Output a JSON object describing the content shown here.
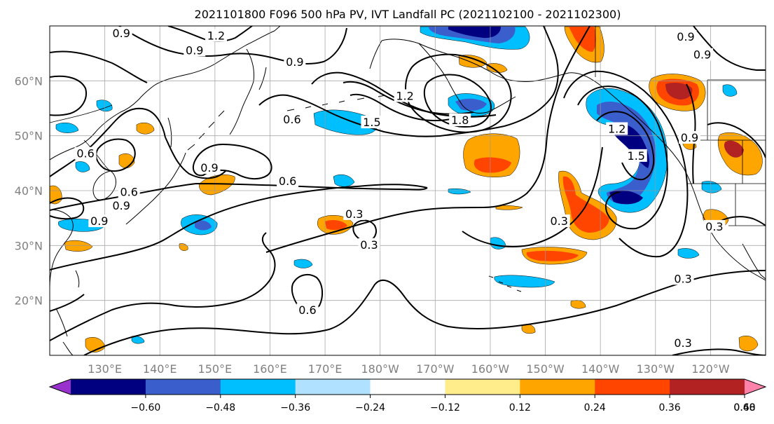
{
  "title": "2021101800 F096 500 hPa PV, IVT Landfall PC (2021102100 - 2021102300)",
  "map": {
    "lon_range": [
      120,
      250
    ],
    "lat_range": [
      10,
      70
    ],
    "lat_labels": [
      {
        "lat": 60,
        "label": "60°N"
      },
      {
        "lat": 50,
        "label": "50°N"
      },
      {
        "lat": 40,
        "label": "40°N"
      },
      {
        "lat": 30,
        "label": "30°N"
      },
      {
        "lat": 20,
        "label": "20°N"
      }
    ],
    "lon_labels": [
      {
        "lon": 130,
        "label": "130°E"
      },
      {
        "lon": 140,
        "label": "140°E"
      },
      {
        "lon": 150,
        "label": "150°E"
      },
      {
        "lon": 160,
        "label": "160°E"
      },
      {
        "lon": 170,
        "label": "170°E"
      },
      {
        "lon": 180,
        "label": "180°W"
      },
      {
        "lon": 190,
        "label": "170°W"
      },
      {
        "lon": 200,
        "label": "160°W"
      },
      {
        "lon": 210,
        "label": "150°W"
      },
      {
        "lon": 220,
        "label": "140°W"
      },
      {
        "lon": 230,
        "label": "130°W"
      },
      {
        "lon": 240,
        "label": "120°W"
      }
    ],
    "grid": true,
    "label_color": "#808080"
  },
  "contour_labels": [
    {
      "text": "1.2",
      "lon": 150.2,
      "lat": 68.3
    },
    {
      "text": "0.9",
      "lon": 146.3,
      "lat": 65.6
    },
    {
      "text": "0.9",
      "lon": 133.0,
      "lat": 68.7
    },
    {
      "text": "0.9",
      "lon": 164.5,
      "lat": 63.5
    },
    {
      "text": "0.6",
      "lon": 164.0,
      "lat": 53.0
    },
    {
      "text": "1.2",
      "lon": 184.5,
      "lat": 57.3
    },
    {
      "text": "1.5",
      "lon": 178.5,
      "lat": 52.5
    },
    {
      "text": "1.8",
      "lon": 194.5,
      "lat": 52.9
    },
    {
      "text": "0.9",
      "lon": 149.0,
      "lat": 44.2
    },
    {
      "text": "0.6",
      "lon": 126.5,
      "lat": 46.8
    },
    {
      "text": "0.6",
      "lon": 134.4,
      "lat": 39.8
    },
    {
      "text": "0.9",
      "lon": 133.0,
      "lat": 37.3
    },
    {
      "text": "0.9",
      "lon": 129.0,
      "lat": 34.5
    },
    {
      "text": "0.6",
      "lon": 163.2,
      "lat": 41.8
    },
    {
      "text": "0.3",
      "lon": 175.3,
      "lat": 35.8
    },
    {
      "text": "0.3",
      "lon": 178.0,
      "lat": 30.2
    },
    {
      "text": "0.6",
      "lon": 166.8,
      "lat": 18.3
    },
    {
      "text": "0.3",
      "lon": 212.5,
      "lat": 34.5
    },
    {
      "text": "1.2",
      "lon": 223.0,
      "lat": 51.3
    },
    {
      "text": "1.5",
      "lon": 226.5,
      "lat": 46.4
    },
    {
      "text": "0.9",
      "lon": 236.2,
      "lat": 49.7
    },
    {
      "text": "0.3",
      "lon": 240.7,
      "lat": 33.5
    },
    {
      "text": "0.3",
      "lon": 235.0,
      "lat": 24.0
    },
    {
      "text": "0.3",
      "lon": 235.0,
      "lat": 12.3
    },
    {
      "text": "0.9",
      "lon": 235.5,
      "lat": 68.1
    },
    {
      "text": "0.9",
      "lon": 238.5,
      "lat": 64.8
    }
  ],
  "colorbar": {
    "tick_labels": [
      "−0.60",
      "−0.48",
      "−0.36",
      "−0.24",
      "−0.12",
      "0.12",
      "0.24",
      "0.36",
      "0.48",
      "0.60"
    ],
    "colors": [
      "#9932cc",
      "#000080",
      "#3a5fcd",
      "#00bfff",
      "#b0e2ff",
      "#ffffff",
      "#ffec8b",
      "#ffa500",
      "#ff4500",
      "#b22222",
      "#ff82ab"
    ]
  }
}
